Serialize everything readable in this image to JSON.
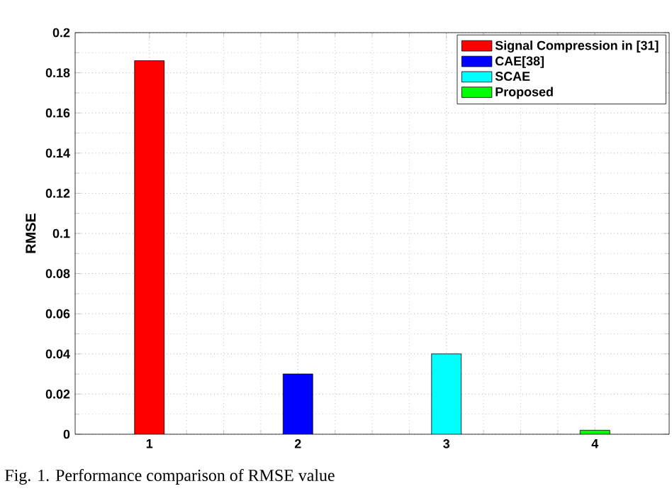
{
  "chart_data": {
    "type": "bar",
    "ylabel": "RMSE",
    "categories": [
      "1",
      "2",
      "3",
      "4"
    ],
    "series": [
      {
        "name": "Signal Compression in [31]",
        "color": "#ff0000",
        "values": [
          0.186,
          null,
          null,
          null
        ]
      },
      {
        "name": "CAE[38]",
        "color": "#0000ff",
        "values": [
          null,
          0.03,
          null,
          null
        ]
      },
      {
        "name": "SCAE",
        "color": "#00ffff",
        "values": [
          null,
          null,
          0.04,
          null
        ]
      },
      {
        "name": "Proposed",
        "color": "#00ff00",
        "values": [
          null,
          null,
          null,
          0.002
        ]
      }
    ],
    "ylim": [
      0,
      0.2
    ],
    "yticks": [
      0,
      0.02,
      0.04,
      0.06,
      0.08,
      0.1,
      0.12,
      0.14,
      0.16,
      0.18,
      0.2
    ],
    "grid": true,
    "legend": "top right",
    "annotations": [
      "Fig. 1.   Performance comparison of RMSE value"
    ]
  }
}
